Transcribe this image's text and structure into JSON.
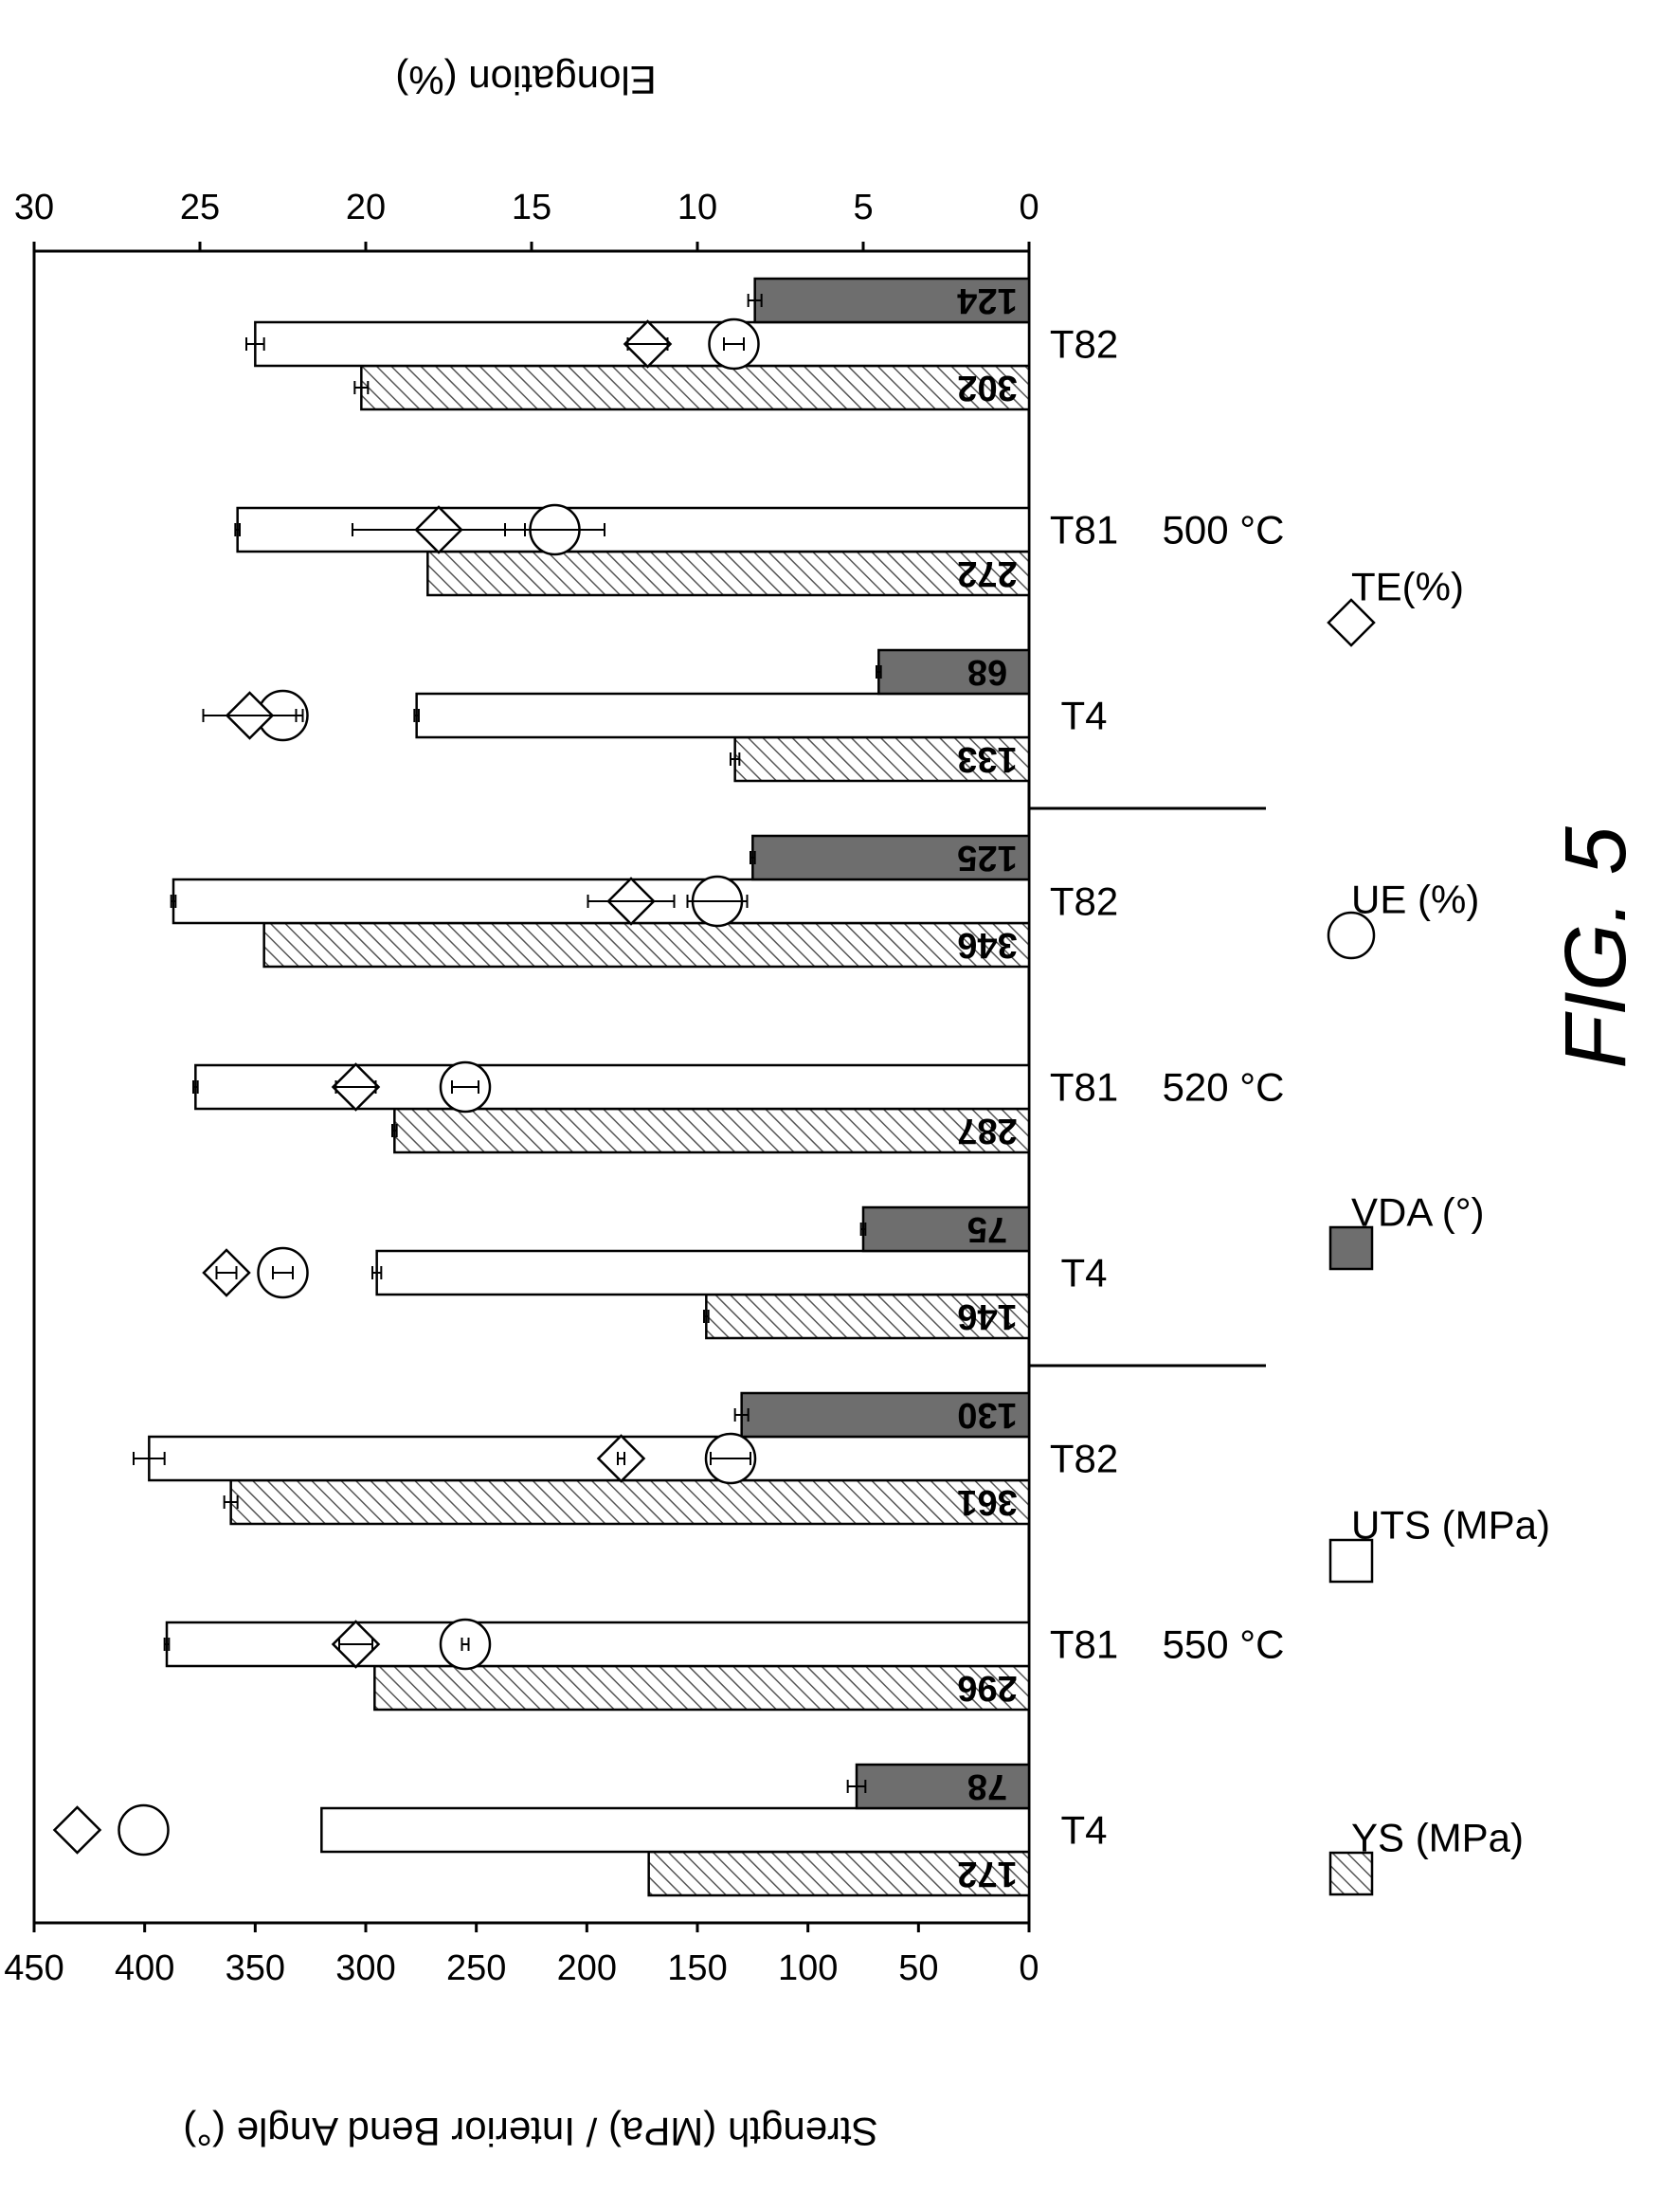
{
  "caption": "FIG. 5",
  "chart_data": {
    "type": "bar",
    "orientation": "rotated-90-clockwise",
    "ylabel_left": "Strength (MPa) / Interior Bend Angle (°)",
    "ylabel_right": "Elongation (%)",
    "ylim_left": [
      0,
      450
    ],
    "ylim_right": [
      0,
      30
    ],
    "ticks_left": [
      "0",
      "50",
      "100",
      "150",
      "200",
      "250",
      "300",
      "350",
      "400",
      "450"
    ],
    "ticks_right": [
      "0",
      "5",
      "10",
      "15",
      "20",
      "25",
      "30"
    ],
    "groups": [
      {
        "label": "550 °C",
        "categories": [
          "T4",
          "T81",
          "T82"
        ]
      },
      {
        "label": "520 °C",
        "categories": [
          "T4",
          "T81",
          "T82"
        ]
      },
      {
        "label": "500 °C",
        "categories": [
          "T4",
          "T81",
          "T82"
        ]
      }
    ],
    "categories": [
      "T4",
      "T81",
      "T82",
      "T4",
      "T81",
      "T82",
      "T4",
      "T81",
      "T82"
    ],
    "bar_labels": {
      "YS": [
        "172",
        "296",
        "361",
        "146",
        "287",
        "346",
        "133",
        "272",
        "302"
      ],
      "VDA": [
        "78",
        "",
        "130",
        "75",
        "",
        "125",
        "68",
        "",
        "124"
      ]
    },
    "series": [
      {
        "name": "YS (MPa)",
        "axis": "left",
        "style": "hatched",
        "values": [
          172,
          296,
          361,
          146,
          287,
          346,
          133,
          272,
          302
        ],
        "errors": [
          0,
          0,
          3,
          1,
          1,
          0,
          2,
          0,
          3
        ]
      },
      {
        "name": "UTS (MPa)",
        "axis": "left",
        "style": "white",
        "values": [
          320,
          390,
          398,
          295,
          377,
          387,
          277,
          358,
          350
        ],
        "errors": [
          0,
          1,
          7,
          2,
          1,
          1,
          1,
          1,
          4
        ]
      },
      {
        "name": "VDA (°)",
        "axis": "left",
        "style": "dark",
        "values": [
          78,
          null,
          130,
          75,
          null,
          125,
          68,
          null,
          124
        ],
        "errors": [
          4,
          0,
          3,
          1,
          0,
          1,
          1,
          0,
          3
        ]
      },
      {
        "name": "UE (%)",
        "axis": "right",
        "style": "circle",
        "values": [
          26.7,
          17.0,
          9.0,
          22.5,
          17.0,
          9.4,
          22.5,
          14.3,
          8.9
        ],
        "errors": [
          0,
          0.1,
          0.6,
          0.3,
          0.4,
          0.9,
          0.6,
          1.5,
          0.3
        ]
      },
      {
        "name": "TE(%)",
        "axis": "right",
        "style": "diamond",
        "values": [
          28.7,
          20.3,
          12.3,
          24.2,
          20.3,
          12.0,
          23.5,
          17.8,
          11.5
        ],
        "errors": [
          0,
          0.5,
          0.1,
          0.3,
          0.6,
          1.3,
          1.4,
          2.6,
          0.6
        ]
      }
    ],
    "legend_position": "right"
  }
}
